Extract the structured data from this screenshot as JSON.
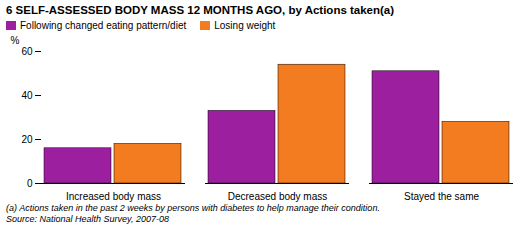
{
  "chart_data": {
    "type": "bar",
    "title": "6 SELF-ASSESSED BODY MASS 12 MONTHS AGO, by Actions taken(a)",
    "categories": [
      "Increased body mass",
      "Decreased body mass",
      "Stayed the same"
    ],
    "series": [
      {
        "name": "Following changed eating pattern/diet",
        "color": "#9B1F9E",
        "values": [
          16,
          33,
          51
        ]
      },
      {
        "name": "Losing weight",
        "color": "#F47C20",
        "values": [
          18,
          54,
          28
        ]
      }
    ],
    "y_label": "%",
    "ylim": [
      0,
      60
    ],
    "yticks": [
      0,
      20,
      40,
      60
    ],
    "legend": "upper left",
    "grid": false,
    "annotations": [
      "(a) Actions taken in the past 2 weeks by persons with diabetes to help manage their condition.",
      "Source: National Health Survey, 2007-08"
    ]
  }
}
